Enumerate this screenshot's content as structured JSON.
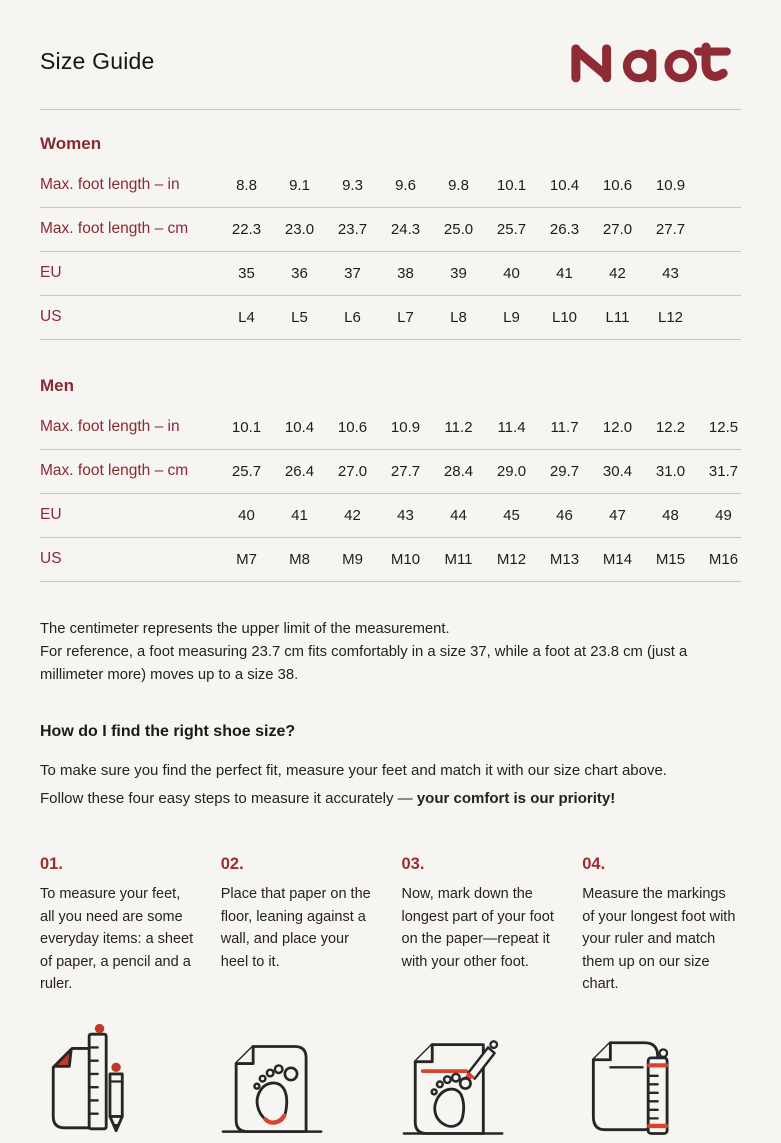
{
  "page": {
    "title": "Size Guide",
    "brand": "Naot"
  },
  "colors": {
    "background": "#f7f5f1",
    "maroon": "#882a33",
    "logo_maroon": "#8e2b36",
    "text": "#1e1d1b",
    "divider": "#c9c6c0",
    "icon_accent_red": "#d8442e",
    "icon_fill_red": "#c0392b"
  },
  "tables": [
    {
      "section": "Women",
      "rows": [
        {
          "label": "Max. foot length – in",
          "values": [
            "8.8",
            "9.1",
            "9.3",
            "9.6",
            "9.8",
            "10.1",
            "10.4",
            "10.6",
            "10.9"
          ]
        },
        {
          "label": "Max. foot length – cm",
          "values": [
            "22.3",
            "23.0",
            "23.7",
            "24.3",
            "25.0",
            "25.7",
            "26.3",
            "27.0",
            "27.7"
          ]
        },
        {
          "label": "EU",
          "values": [
            "35",
            "36",
            "37",
            "38",
            "39",
            "40",
            "41",
            "42",
            "43"
          ]
        },
        {
          "label": "US",
          "values": [
            "L4",
            "L5",
            "L6",
            "L7",
            "L8",
            "L9",
            "L10",
            "L11",
            "L12"
          ]
        }
      ]
    },
    {
      "section": "Men",
      "rows": [
        {
          "label": "Max. foot length – in",
          "values": [
            "10.1",
            "10.4",
            "10.6",
            "10.9",
            "11.2",
            "11.4",
            "11.7",
            "12.0",
            "12.2",
            "12.5"
          ]
        },
        {
          "label": "Max. foot length – cm",
          "values": [
            "25.7",
            "26.4",
            "27.0",
            "27.7",
            "28.4",
            "29.0",
            "29.7",
            "30.4",
            "31.0",
            "31.7"
          ]
        },
        {
          "label": "EU",
          "values": [
            "40",
            "41",
            "42",
            "43",
            "44",
            "45",
            "46",
            "47",
            "48",
            "49"
          ]
        },
        {
          "label": "US",
          "values": [
            "M7",
            "M8",
            "M9",
            "M10",
            "M11",
            "M12",
            "M13",
            "M14",
            "M15",
            "M16"
          ]
        }
      ]
    }
  ],
  "notes": {
    "line1": "The centimeter represents the upper limit of the measurement.",
    "line2": "For reference, a foot measuring 23.7 cm fits comfortably in a size 37, while a foot at 23.8 cm (just a millimeter more) moves up to a size 38."
  },
  "how_to": {
    "heading": "How do I find the right shoe size?",
    "intro_regular": "To make sure you find the perfect fit, measure your feet and match it with our size chart above. Follow these four easy steps to measure it accurately — ",
    "intro_bold": "your comfort is our priority!"
  },
  "steps": [
    {
      "number": "01.",
      "text": "To measure your feet, all you need are some everyday items: a sheet of paper, a pencil and a ruler.",
      "icon": "paper-ruler-pencil-icon"
    },
    {
      "number": "02.",
      "text": "Place that paper on the floor, leaning against a wall, and place your heel to it.",
      "icon": "paper-heel-wall-icon"
    },
    {
      "number": "03.",
      "text": "Now, mark down the longest part of your foot on the paper—repeat it with your other foot.",
      "icon": "mark-foot-pencil-icon"
    },
    {
      "number": "04.",
      "text": "Measure the markings of your longest foot with your ruler and match them up on our size chart.",
      "icon": "ruler-measure-markings-icon"
    }
  ]
}
